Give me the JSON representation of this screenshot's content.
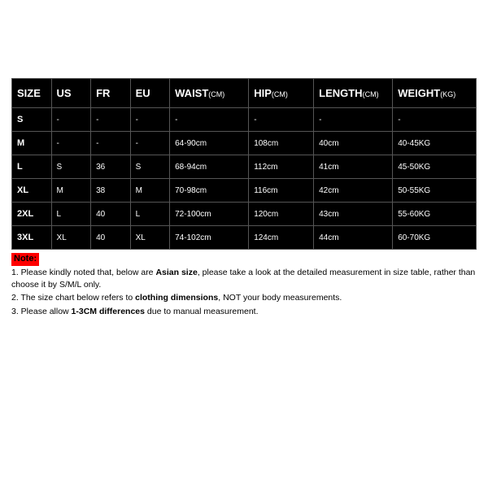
{
  "table": {
    "background_color": "#000000",
    "text_color": "#ffffff",
    "border_color": "#555555",
    "header_fontsize": 13,
    "unit_fontsize": 9,
    "cell_fontsize": 10,
    "rowhead_fontsize": 11,
    "headers": {
      "size": {
        "label": "SIZE",
        "unit": ""
      },
      "us": {
        "label": "US",
        "unit": ""
      },
      "fr": {
        "label": "FR",
        "unit": ""
      },
      "eu": {
        "label": "EU",
        "unit": ""
      },
      "waist": {
        "label": "WAIST",
        "unit": "(CM)"
      },
      "hip": {
        "label": "HIP",
        "unit": "(CM)"
      },
      "length": {
        "label": "LENGTH",
        "unit": "(CM)"
      },
      "weight": {
        "label": "WEIGHT",
        "unit": "(KG)"
      }
    },
    "rows": [
      {
        "size": "S",
        "us": "-",
        "fr": "-",
        "eu": "-",
        "waist": "-",
        "hip": "-",
        "length": "-",
        "weight": "-"
      },
      {
        "size": "M",
        "us": "-",
        "fr": "-",
        "eu": "-",
        "waist": "64-90cm",
        "hip": "108cm",
        "length": "40cm",
        "weight": "40-45KG"
      },
      {
        "size": "L",
        "us": "S",
        "fr": "36",
        "eu": "S",
        "waist": "68-94cm",
        "hip": "112cm",
        "length": "41cm",
        "weight": "45-50KG"
      },
      {
        "size": "XL",
        "us": "M",
        "fr": "38",
        "eu": "M",
        "waist": "70-98cm",
        "hip": "116cm",
        "length": "42cm",
        "weight": "50-55KG"
      },
      {
        "size": "2XL",
        "us": "L",
        "fr": "40",
        "eu": "L",
        "waist": "72-100cm",
        "hip": "120cm",
        "length": "43cm",
        "weight": "55-60KG"
      },
      {
        "size": "3XL",
        "us": "XL",
        "fr": "40",
        "eu": "XL",
        "waist": "74-102cm",
        "hip": "124cm",
        "length": "44cm",
        "weight": "60-70KG"
      }
    ]
  },
  "notes": {
    "label": "Note:",
    "label_bg": "#ff0000",
    "label_color": "#000000",
    "text_color": "#000000",
    "fontsize": 10.5,
    "lines": {
      "l1a": "1. Please kindly noted that, below are ",
      "l1b": "Asian size",
      "l1c": ", please take a look at the detailed measurement in size table, rather than choose it by S/M/L only.",
      "l2a": "2. The size chart below refers to ",
      "l2b": "clothing dimensions",
      "l2c": ", NOT your body measurements.",
      "l3a": "3. Please allow ",
      "l3b": "1-3CM differences",
      "l3c": " due to manual measurement."
    }
  }
}
